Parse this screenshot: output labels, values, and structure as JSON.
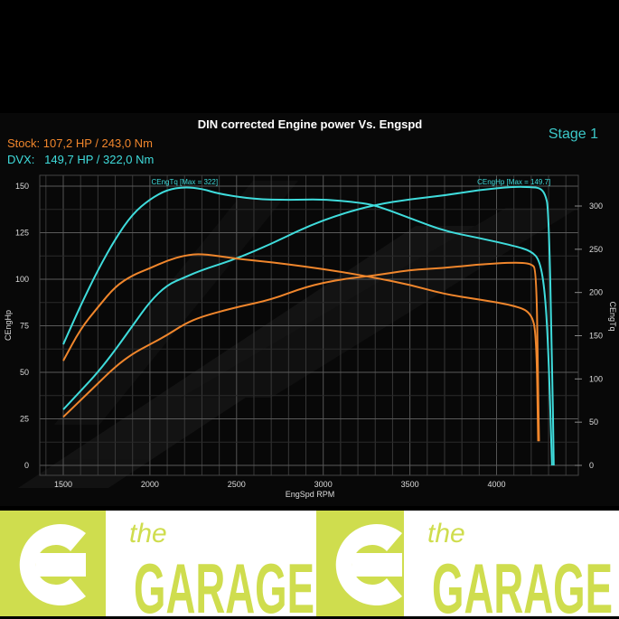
{
  "legend": {
    "stock": "Stock: 107,2 HP / 243,0 Nm",
    "dvx": "DVX:   149,7 HP / 322,0 Nm",
    "stage": "Stage 1"
  },
  "logo": {
    "small": "the",
    "big": "GARAGE"
  },
  "colors": {
    "stock": "#f0862c",
    "dvx": "#3fdcdc",
    "logo": "#cfdd4e",
    "background": "#000000"
  },
  "chart_data": {
    "type": "line",
    "title": "DIN corrected Engine power Vs. Engspd",
    "xlabel": "EngSpd RPM",
    "ylabel": "CEngHp",
    "y2label": "CEngTq",
    "xlim": [
      1360,
      4470
    ],
    "ylim": [
      0,
      155
    ],
    "y2lim": [
      0,
      333
    ],
    "xticks": [
      1500,
      2000,
      2500,
      3000,
      3500,
      4000
    ],
    "yticks": [
      0,
      25,
      50,
      75,
      100,
      125,
      150
    ],
    "y2ticks": [
      0,
      50,
      100,
      150,
      200,
      250,
      300
    ],
    "grid": true,
    "annotations": [
      {
        "text": "CEngTq [Max = 322]",
        "x": 2200,
        "series": "DVX Tq"
      },
      {
        "text": "CEngHp [Max = 149.7]",
        "x": 4100,
        "series": "DVX HP"
      }
    ],
    "series": [
      {
        "key": "dvx_tq",
        "axis": "y2",
        "color": "#3fdcdc",
        "x": [
          1500,
          1600,
          1700,
          1800,
          1900,
          2000,
          2100,
          2200,
          2300,
          2400,
          2600,
          2800,
          3000,
          3200,
          3300,
          3500,
          3700,
          3900,
          4100,
          4200,
          4250,
          4280,
          4300,
          4320
        ],
        "y": [
          140,
          185,
          226,
          262,
          291,
          308,
          319,
          322,
          320,
          314,
          308,
          307,
          308,
          304,
          301,
          286,
          271,
          263,
          254,
          248,
          237,
          200,
          129,
          0
        ]
      },
      {
        "key": "dvx_hp",
        "axis": "y",
        "color": "#3fdcdc",
        "x": [
          1500,
          1600,
          1700,
          1800,
          1900,
          2000,
          2100,
          2200,
          2300,
          2500,
          2700,
          2900,
          3100,
          3300,
          3500,
          3700,
          3900,
          4100,
          4200,
          4250,
          4280,
          4300,
          4320,
          4330
        ],
        "y": [
          30,
          40,
          50,
          62,
          75,
          88,
          97,
          101,
          105,
          111,
          119,
          128,
          135,
          140,
          143,
          145,
          148,
          149.7,
          149.5,
          149,
          146,
          138,
          60,
          0
        ]
      },
      {
        "key": "stock_tq",
        "axis": "y2",
        "color": "#f0862c",
        "x": [
          1500,
          1600,
          1700,
          1800,
          1900,
          2000,
          2100,
          2200,
          2300,
          2500,
          2700,
          2900,
          3100,
          3300,
          3500,
          3700,
          3900,
          4100,
          4200,
          4230,
          4240
        ],
        "y": [
          121,
          158,
          183,
          207,
          220,
          228,
          237,
          243,
          245,
          239,
          235,
          230,
          224,
          217,
          209,
          198,
          192,
          185,
          177,
          151,
          28
        ]
      },
      {
        "key": "stock_hp",
        "axis": "y",
        "color": "#f0862c",
        "x": [
          1500,
          1600,
          1700,
          1800,
          1900,
          2000,
          2100,
          2200,
          2300,
          2500,
          2700,
          2900,
          3100,
          3300,
          3500,
          3700,
          3900,
          4100,
          4200,
          4230,
          4240,
          4245
        ],
        "y": [
          26,
          35,
          44,
          53,
          60,
          65,
          70,
          76,
          80,
          85,
          89,
          96,
          100,
          102,
          105,
          106,
          108,
          109,
          108.5,
          105,
          40,
          13
        ]
      }
    ]
  }
}
